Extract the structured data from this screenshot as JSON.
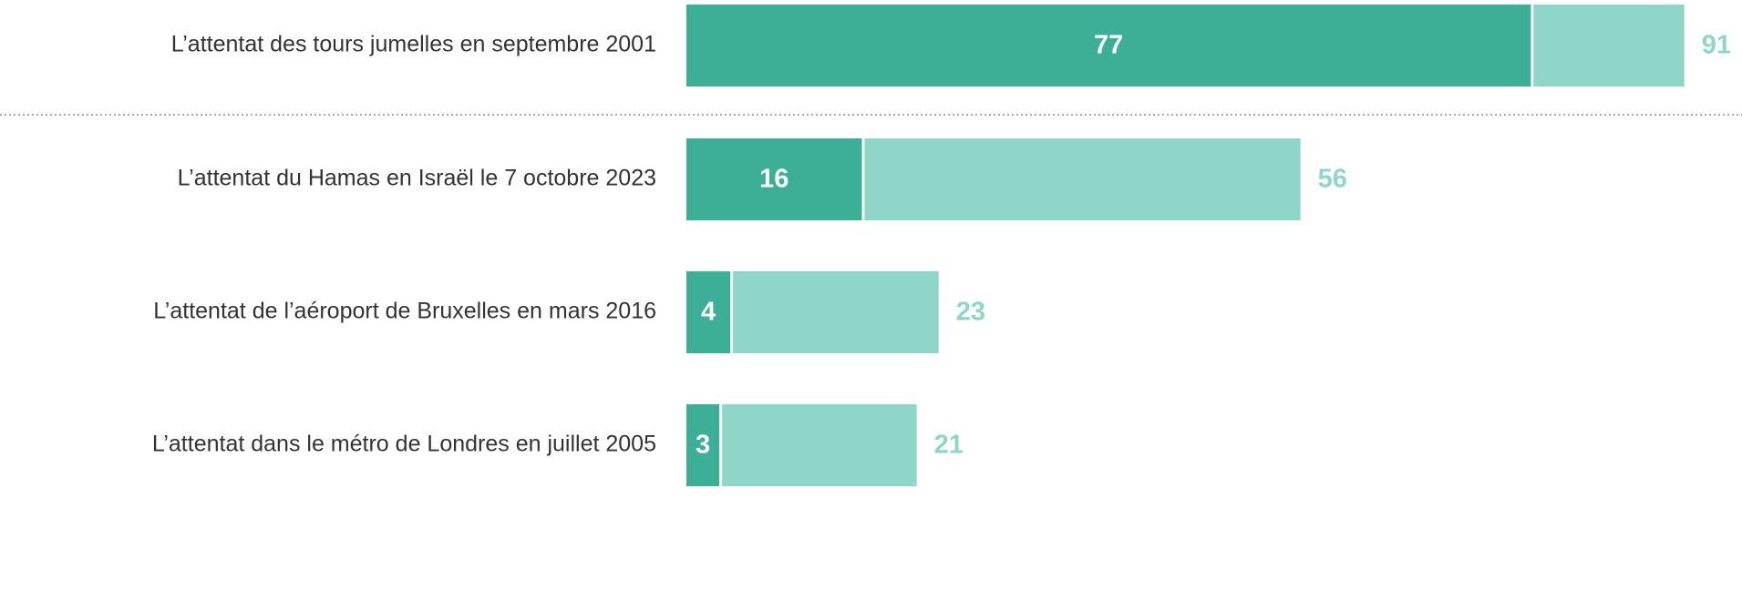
{
  "chart_data": {
    "type": "overlay-bar",
    "categories": [
      "L’attentat des tours jumelles en septembre 2001",
      "L’attentat du Hamas en Israël le 7 octobre 2023",
      "L’attentat de l’aéroport de Bruxelles en mars 2016",
      "L’attentat dans le métro de Londres en juillet 2005"
    ],
    "series": [
      {
        "color": "#3daf96",
        "values": [
          77,
          16,
          4,
          3
        ]
      },
      {
        "color": "#90d6c8",
        "values": [
          91,
          56,
          23,
          21
        ]
      }
    ]
  }
}
